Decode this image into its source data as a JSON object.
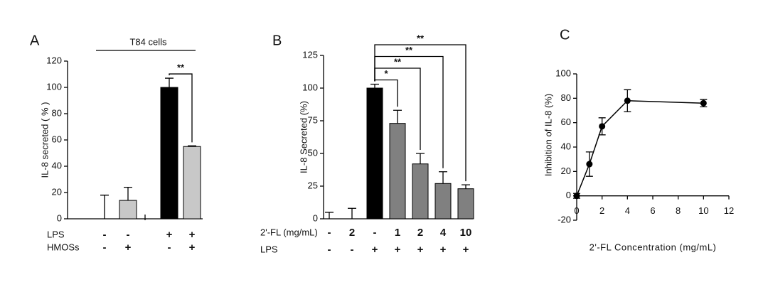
{
  "chart_data": [
    {
      "type": "bar",
      "panel": "A",
      "group_label": "T84 cells",
      "ylabel": "IL-8 secreted ( % )",
      "values": [
        0,
        14,
        100,
        55
      ],
      "errors": [
        18,
        10,
        7,
        0.5
      ],
      "colors": [
        "#c8c8c8",
        "#c8c8c8",
        "#000000",
        "#c8c8c8"
      ],
      "ylim": [
        0,
        120
      ],
      "yticks": [
        0,
        20,
        40,
        60,
        80,
        100,
        120
      ],
      "rows": [
        {
          "label": "LPS",
          "values": [
            "-",
            "-",
            "+",
            "+"
          ]
        },
        {
          "label": "HMOSs",
          "values": [
            "-",
            "+",
            "-",
            "+"
          ]
        }
      ],
      "brackets": [
        {
          "label": "**"
        }
      ]
    },
    {
      "type": "bar",
      "panel": "B",
      "ylabel": "IL-8 Secreted (%)",
      "values": [
        0,
        0,
        100,
        73,
        42,
        27,
        23
      ],
      "errors": [
        5,
        8,
        3,
        10,
        8,
        9,
        3
      ],
      "colors": [
        "#808080",
        "#808080",
        "#000000",
        "#808080",
        "#808080",
        "#808080",
        "#808080"
      ],
      "ylim": [
        0,
        125
      ],
      "yticks": [
        0,
        25,
        50,
        75,
        100,
        125
      ],
      "rows": [
        {
          "label": "2'-FL (mg/mL)",
          "values": [
            "-",
            "2",
            "-",
            "1",
            "2",
            "4",
            "10"
          ]
        },
        {
          "label": "LPS",
          "values": [
            "-",
            "-",
            "+",
            "+",
            "+",
            "+",
            "+"
          ]
        }
      ],
      "brackets": [
        {
          "label": "*"
        },
        {
          "label": "**"
        },
        {
          "label": "**"
        },
        {
          "label": "**"
        }
      ]
    },
    {
      "type": "line",
      "panel": "C",
      "xlabel": "2'-FL Concentration (mg/mL)",
      "ylabel": "Inhibition of IL-8 (%)",
      "x": [
        0,
        1,
        2,
        4,
        10
      ],
      "values": [
        0,
        26,
        57,
        78,
        76
      ],
      "errors": [
        2,
        10,
        7,
        9,
        3
      ],
      "color": "#000000",
      "xlim": [
        0,
        12
      ],
      "xticks": [
        0,
        2,
        4,
        6,
        8,
        10,
        12
      ],
      "ylim": [
        -20,
        100
      ],
      "yticks": [
        -20,
        0,
        20,
        40,
        60,
        80,
        100
      ]
    }
  ]
}
